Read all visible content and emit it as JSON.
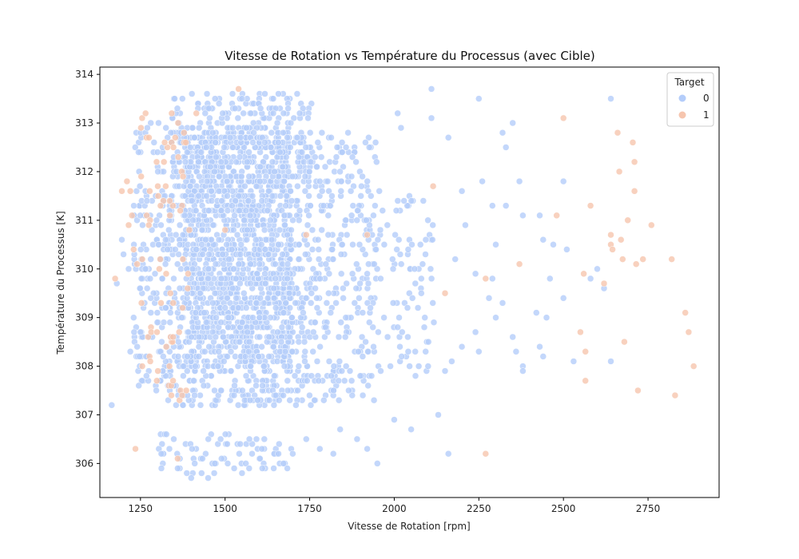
{
  "chart_data": {
    "type": "scatter",
    "title": "Vitesse de Rotation vs Température du Processus (avec Cible)",
    "xlabel": "Vitesse de Rotation [rpm]",
    "ylabel": "Température du Processus [K]",
    "xlim": [
      1130,
      2960
    ],
    "ylim": [
      305.3,
      314.15
    ],
    "xticks": [
      1250,
      1500,
      1750,
      2000,
      2250,
      2500,
      2750
    ],
    "yticks": [
      306,
      307,
      308,
      309,
      310,
      311,
      312,
      313,
      314
    ],
    "grid": false,
    "legend": {
      "title": "Target",
      "placement": "top-right",
      "entries": [
        "0",
        "1"
      ]
    },
    "colors": {
      "0": "#b4cdfa",
      "1": "#f6c5ae"
    },
    "series": [
      {
        "name": "0",
        "cores": [
          {
            "x": [
              1330,
              1760
            ],
            "y": [
              307.2,
              313.6
            ],
            "n": 1100
          },
          {
            "x": [
              1380,
              1700
            ],
            "y": [
              308.0,
              312.8
            ],
            "n": 900
          },
          {
            "x": [
              1230,
              1330
            ],
            "y": [
              307.5,
              313.0
            ],
            "n": 150
          },
          {
            "x": [
              1760,
              1950
            ],
            "y": [
              307.3,
              312.8
            ],
            "n": 260
          },
          {
            "x": [
              1950,
              2120
            ],
            "y": [
              307.8,
              311.6
            ],
            "n": 80
          },
          {
            "x": [
              1300,
              1700
            ],
            "y": [
              305.8,
              306.6
            ],
            "n": 75
          }
        ],
        "points": [
          [
            1165,
            307.2
          ],
          [
            1180,
            309.7
          ],
          [
            1195,
            310.6
          ],
          [
            1200,
            310.3
          ],
          [
            1215,
            310.0
          ],
          [
            1220,
            308.3
          ],
          [
            1230,
            309.0
          ],
          [
            1245,
            307.6
          ],
          [
            1250,
            308.7
          ],
          [
            2110,
            313.7
          ],
          [
            2250,
            313.5
          ],
          [
            2640,
            313.5
          ],
          [
            2160,
            312.7
          ],
          [
            2110,
            313.1
          ],
          [
            2350,
            313.0
          ],
          [
            2320,
            312.8
          ],
          [
            2330,
            312.5
          ],
          [
            2370,
            311.8
          ],
          [
            2260,
            311.8
          ],
          [
            2200,
            311.6
          ],
          [
            2290,
            311.3
          ],
          [
            2300,
            310.5
          ],
          [
            2330,
            311.3
          ],
          [
            2380,
            311.1
          ],
          [
            2430,
            311.1
          ],
          [
            2440,
            310.6
          ],
          [
            2470,
            310.5
          ],
          [
            2500,
            311.8
          ],
          [
            2510,
            310.4
          ],
          [
            2210,
            310.9
          ],
          [
            2180,
            310.2
          ],
          [
            2240,
            309.9
          ],
          [
            2290,
            309.8
          ],
          [
            2280,
            309.4
          ],
          [
            2320,
            309.3
          ],
          [
            2300,
            309.0
          ],
          [
            2350,
            308.6
          ],
          [
            2360,
            308.3
          ],
          [
            2380,
            308.0
          ],
          [
            2380,
            307.9
          ],
          [
            2240,
            308.7
          ],
          [
            2250,
            308.3
          ],
          [
            2200,
            308.4
          ],
          [
            2170,
            308.1
          ],
          [
            2150,
            307.9
          ],
          [
            2100,
            308.0
          ],
          [
            2130,
            307.0
          ],
          [
            2050,
            306.7
          ],
          [
            2160,
            306.2
          ],
          [
            2420,
            309.1
          ],
          [
            2450,
            309.0
          ],
          [
            2430,
            308.4
          ],
          [
            2440,
            308.2
          ],
          [
            2460,
            309.8
          ],
          [
            2500,
            309.4
          ],
          [
            2530,
            308.1
          ],
          [
            2580,
            309.8
          ],
          [
            2600,
            310.0
          ],
          [
            2640,
            308.1
          ],
          [
            2620,
            309.6
          ],
          [
            2060,
            310.0
          ],
          [
            2080,
            309.5
          ],
          [
            2040,
            308.6
          ],
          [
            2010,
            308.8
          ],
          [
            2070,
            309.2
          ],
          [
            2020,
            312.9
          ],
          [
            2010,
            313.2
          ],
          [
            1950,
            306.0
          ],
          [
            1920,
            306.3
          ],
          [
            1890,
            306.5
          ],
          [
            2000,
            306.9
          ],
          [
            1840,
            306.7
          ],
          [
            1780,
            306.3
          ],
          [
            1740,
            306.5
          ],
          [
            1400,
            305.7
          ],
          [
            1450,
            305.7
          ],
          [
            1550,
            305.8
          ],
          [
            1610,
            305.9
          ],
          [
            1820,
            306.2
          ],
          [
            1700,
            306.2
          ]
        ]
      },
      {
        "name": "1",
        "cores": [
          {
            "x": [
              1250,
              1400
            ],
            "y": [
              307.2,
              313.2
            ],
            "n": 70
          }
        ],
        "points": [
          [
            1175,
            309.8
          ],
          [
            1195,
            311.6
          ],
          [
            1210,
            311.8
          ],
          [
            1215,
            310.9
          ],
          [
            1220,
            311.6
          ],
          [
            1225,
            311.1
          ],
          [
            1230,
            310.4
          ],
          [
            1235,
            306.3
          ],
          [
            1240,
            310.1
          ],
          [
            1255,
            313.1
          ],
          [
            1265,
            313.2
          ],
          [
            1360,
            306.1
          ],
          [
            1415,
            313.2
          ],
          [
            1540,
            313.7
          ],
          [
            1500,
            310.8
          ],
          [
            1740,
            310.7
          ],
          [
            1920,
            310.7
          ],
          [
            2115,
            311.7
          ],
          [
            2150,
            309.5
          ],
          [
            2270,
            309.8
          ],
          [
            2270,
            306.2
          ],
          [
            2370,
            310.1
          ],
          [
            2480,
            311.1
          ],
          [
            2500,
            313.1
          ],
          [
            2550,
            308.7
          ],
          [
            2560,
            309.9
          ],
          [
            2565,
            308.3
          ],
          [
            2565,
            307.7
          ],
          [
            2580,
            311.3
          ],
          [
            2620,
            309.7
          ],
          [
            2640,
            310.5
          ],
          [
            2640,
            310.7
          ],
          [
            2645,
            310.4
          ],
          [
            2660,
            312.8
          ],
          [
            2665,
            312.0
          ],
          [
            2670,
            310.6
          ],
          [
            2675,
            310.2
          ],
          [
            2680,
            308.5
          ],
          [
            2690,
            311.0
          ],
          [
            2705,
            312.6
          ],
          [
            2710,
            312.2
          ],
          [
            2710,
            311.6
          ],
          [
            2715,
            310.1
          ],
          [
            2720,
            307.5
          ],
          [
            2735,
            310.2
          ],
          [
            2760,
            310.9
          ],
          [
            2820,
            310.2
          ],
          [
            2830,
            307.4
          ],
          [
            2860,
            309.1
          ],
          [
            2870,
            308.7
          ],
          [
            2885,
            308.0
          ]
        ]
      }
    ]
  }
}
